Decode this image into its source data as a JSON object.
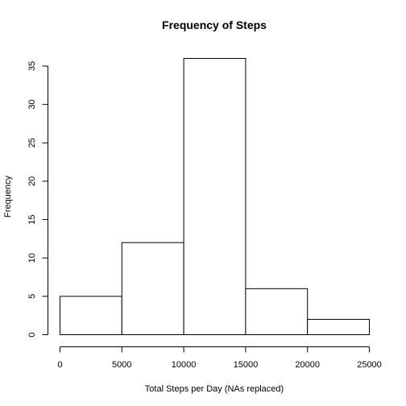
{
  "chart_data": {
    "type": "bar",
    "title": "Frequency of Steps",
    "xlabel": "Total Steps per Day (NAs replaced)",
    "ylabel": "Frequency",
    "bins": [
      {
        "start": 0,
        "end": 5000,
        "value": 5
      },
      {
        "start": 5000,
        "end": 10000,
        "value": 12
      },
      {
        "start": 10000,
        "end": 15000,
        "value": 36
      },
      {
        "start": 15000,
        "end": 20000,
        "value": 6
      },
      {
        "start": 20000,
        "end": 25000,
        "value": 2
      }
    ],
    "xlim": [
      0,
      25000
    ],
    "ylim": [
      0,
      35
    ],
    "xticks": [
      0,
      5000,
      10000,
      15000,
      20000,
      25000
    ],
    "yticks": [
      0,
      5,
      10,
      15,
      20,
      25,
      30,
      35
    ],
    "grid": false,
    "colors": {
      "fill": "#ffffff",
      "stroke": "#000000"
    }
  }
}
